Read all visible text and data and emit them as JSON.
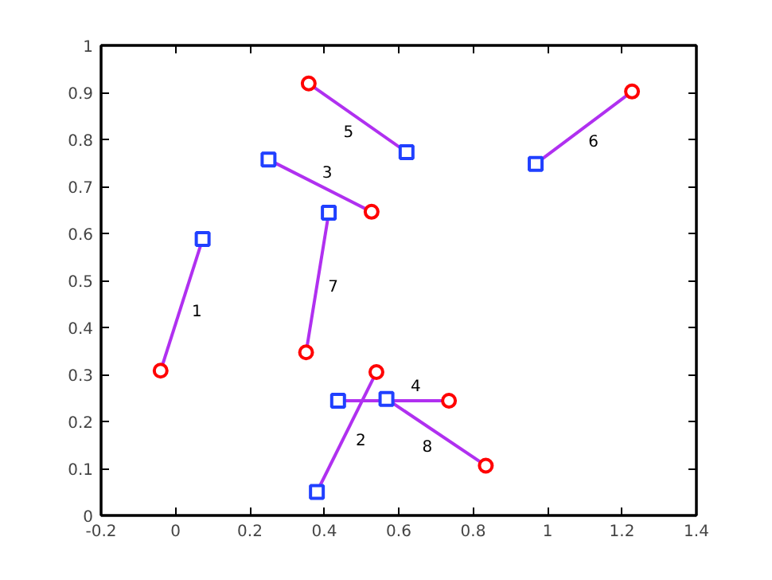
{
  "chart_data": {
    "type": "scatter",
    "xlim": [
      -0.2,
      1.4
    ],
    "ylim": [
      0,
      1
    ],
    "xticks": [
      -0.2,
      0,
      0.2,
      0.4,
      0.6,
      0.8,
      1,
      1.2,
      1.4
    ],
    "yticks": [
      0,
      0.1,
      0.2,
      0.3,
      0.4,
      0.5,
      0.6,
      0.7,
      0.8,
      0.9,
      1
    ],
    "grid": false,
    "series": [
      {
        "type": "line",
        "name": "1",
        "color": "#b030f0",
        "marker": "none",
        "x": [
          -0.04,
          0.073
        ],
        "values": [
          0.308,
          0.588
        ]
      },
      {
        "type": "line",
        "name": "2",
        "color": "#b030f0",
        "marker": "none",
        "x": [
          0.54,
          0.38
        ],
        "values": [
          0.305,
          0.05
        ]
      },
      {
        "type": "line",
        "name": "3",
        "color": "#b030f0",
        "marker": "none",
        "x": [
          0.527,
          0.25
        ],
        "values": [
          0.646,
          0.757
        ]
      },
      {
        "type": "line",
        "name": "4",
        "color": "#b030f0",
        "marker": "none",
        "x": [
          0.735,
          0.437
        ],
        "values": [
          0.244,
          0.244
        ]
      },
      {
        "type": "line",
        "name": "5",
        "color": "#b030f0",
        "marker": "none",
        "x": [
          0.358,
          0.621
        ],
        "values": [
          0.919,
          0.773
        ]
      },
      {
        "type": "line",
        "name": "6",
        "color": "#b030f0",
        "marker": "none",
        "x": [
          1.227,
          0.968
        ],
        "values": [
          0.902,
          0.748
        ]
      },
      {
        "type": "line",
        "name": "7",
        "color": "#b030f0",
        "marker": "none",
        "x": [
          0.351,
          0.412
        ],
        "values": [
          0.347,
          0.644
        ]
      },
      {
        "type": "line",
        "name": "8",
        "color": "#b030f0",
        "marker": "none",
        "x": [
          0.834,
          0.567
        ],
        "values": [
          0.106,
          0.248
        ]
      },
      {
        "color": "#ff0000",
        "marker": "circle",
        "x": [
          -0.04,
          0.54,
          0.527,
          0.735,
          0.358,
          1.227,
          0.351,
          0.834
        ],
        "values": [
          0.308,
          0.305,
          0.646,
          0.244,
          0.919,
          0.902,
          0.347,
          0.106
        ]
      },
      {
        "color": "#2040ff",
        "marker": "square",
        "x": [
          0.073,
          0.38,
          0.25,
          0.437,
          0.621,
          0.968,
          0.412,
          0.567
        ],
        "values": [
          0.588,
          0.05,
          0.757,
          0.244,
          0.773,
          0.748,
          0.644,
          0.248
        ]
      }
    ]
  }
}
